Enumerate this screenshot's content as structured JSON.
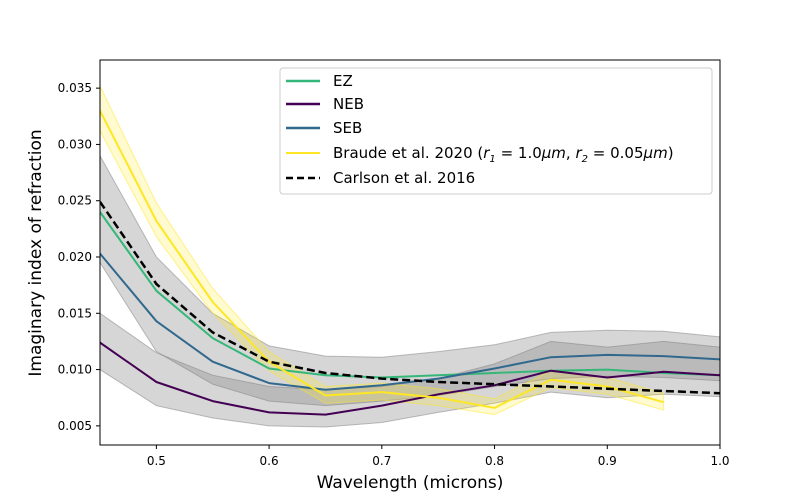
{
  "chart_data": {
    "type": "line",
    "xlabel": "Wavelength (microns)",
    "ylabel": "Imaginary index of refraction",
    "xlim": [
      0.45,
      1.0
    ],
    "ylim": [
      0.0033,
      0.0375
    ],
    "x_ticks": [
      "0.5",
      "0.6",
      "0.7",
      "0.8",
      "0.9",
      "1.0"
    ],
    "y_ticks": [
      "0.005",
      "0.010",
      "0.015",
      "0.020",
      "0.025",
      "0.030",
      "0.035"
    ],
    "x": [
      0.45,
      0.5,
      0.55,
      0.6,
      0.65,
      0.7,
      0.75,
      0.8,
      0.85,
      0.9,
      0.95,
      1.0
    ],
    "series": [
      {
        "name": "EZ",
        "color": "#35b779",
        "style": "solid",
        "values": [
          0.024,
          0.017,
          0.0128,
          0.0101,
          0.0095,
          0.0093,
          0.0095,
          0.0097,
          0.0099,
          0.01,
          0.0097,
          0.0095
        ]
      },
      {
        "name": "NEB",
        "color": "#440154",
        "style": "solid",
        "values": [
          0.0124,
          0.0089,
          0.0072,
          0.0062,
          0.006,
          0.0068,
          0.0078,
          0.0086,
          0.0099,
          0.0093,
          0.0098,
          0.0095
        ],
        "band_upper": [
          0.015,
          0.0115,
          0.0095,
          0.0085,
          0.0082,
          0.0085,
          0.0092,
          0.0105,
          0.0125,
          0.012,
          0.0125,
          0.012
        ],
        "band_lower": [
          0.01,
          0.0068,
          0.0057,
          0.005,
          0.0049,
          0.0053,
          0.0062,
          0.007,
          0.008,
          0.0075,
          0.0078,
          0.0076
        ]
      },
      {
        "name": "SEB",
        "color": "#31688e",
        "style": "solid",
        "values": [
          0.0203,
          0.0143,
          0.0107,
          0.0088,
          0.0082,
          0.0086,
          0.0092,
          0.0101,
          0.0111,
          0.0113,
          0.0112,
          0.0109
        ],
        "band_upper": [
          0.029,
          0.02,
          0.015,
          0.0121,
          0.0112,
          0.0111,
          0.0116,
          0.0122,
          0.0133,
          0.0135,
          0.0134,
          0.0129
        ],
        "band_lower": [
          0.0195,
          0.0116,
          0.0087,
          0.0072,
          0.0068,
          0.0072,
          0.0077,
          0.0085,
          0.0092,
          0.0094,
          0.0093,
          0.009
        ]
      },
      {
        "name": "Braude et al. 2020 (r1 = 1.0μm, r2 = 0.05μm)",
        "color": "#fde725",
        "style": "solid",
        "x": [
          0.45,
          0.5,
          0.55,
          0.6,
          0.65,
          0.7,
          0.75,
          0.8,
          0.85,
          0.9,
          0.95
        ],
        "values": [
          0.033,
          0.0232,
          0.016,
          0.0107,
          0.0077,
          0.008,
          0.0075,
          0.0066,
          0.0091,
          0.0085,
          0.0071
        ],
        "band_upper": [
          0.0352,
          0.0248,
          0.0172,
          0.0116,
          0.0085,
          0.0088,
          0.0083,
          0.0074,
          0.0099,
          0.0093,
          0.0079
        ],
        "band_lower": [
          0.0312,
          0.0218,
          0.015,
          0.0099,
          0.007,
          0.0073,
          0.0068,
          0.006,
          0.0084,
          0.0078,
          0.0064
        ]
      },
      {
        "name": "Carlson et al. 2016",
        "color": "#000000",
        "style": "dashed",
        "values": [
          0.0249,
          0.0176,
          0.0133,
          0.0107,
          0.0097,
          0.0092,
          0.0089,
          0.0087,
          0.0085,
          0.0083,
          0.0081,
          0.0079
        ]
      }
    ],
    "legend_position": "top-right",
    "legend_labels": {
      "ez": "EZ",
      "neb": "NEB",
      "seb": "SEB",
      "braude_prefix": "Braude et al. 2020 (",
      "braude_r1_var": "r",
      "braude_r1_sub": "1",
      "braude_r1_val": " = 1.0",
      "braude_r1_unit": "μm",
      "braude_sep": ", ",
      "braude_r2_var": "r",
      "braude_r2_sub": "2",
      "braude_r2_val": " = 0.05",
      "braude_r2_unit": "μm",
      "braude_suffix": ")",
      "carlson": "Carlson et al. 2016"
    }
  }
}
